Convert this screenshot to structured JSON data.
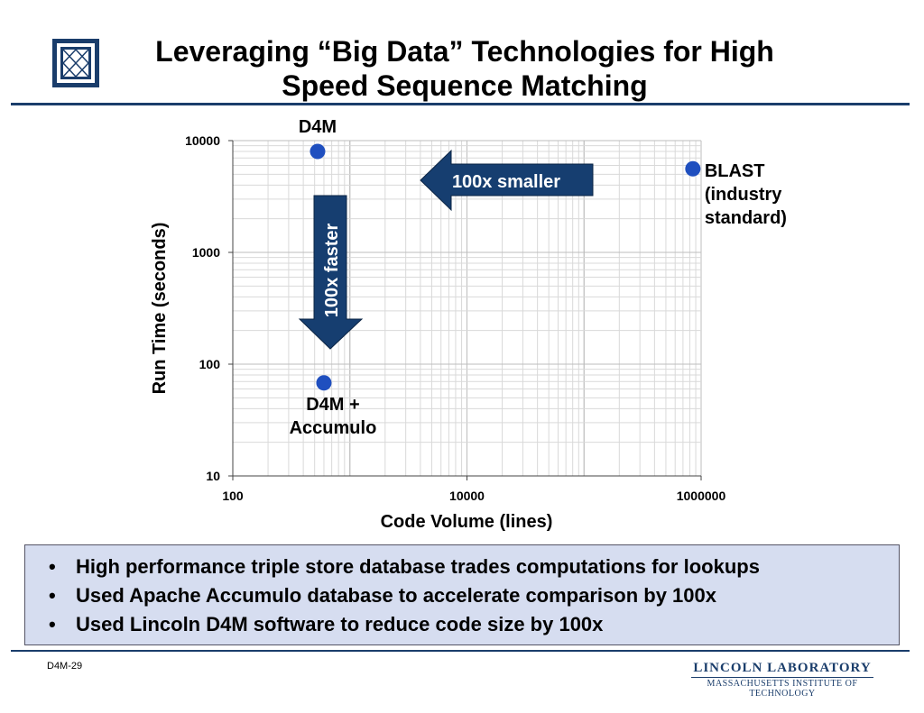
{
  "slide": {
    "title_line1": "Leveraging “Big Data” Technologies for High",
    "title_line2": "Speed Sequence Matching",
    "bullets": [
      "High performance triple store database trades computations for lookups",
      "Used Apache Accumulo database to accelerate comparison by 100x",
      "Used Lincoln D4M software to reduce code size by 100x"
    ],
    "footer_id": "D4M-29",
    "lab_name": "LINCOLN LABORATORY",
    "lab_sub": "MASSACHUSETTS INSTITUTE OF TECHNOLOGY"
  },
  "chart_data": {
    "type": "scatter",
    "xlabel": "Code Volume (lines)",
    "ylabel": "Run Time (seconds)",
    "x_scale": "log",
    "y_scale": "log",
    "xlim": [
      100,
      1000000
    ],
    "ylim": [
      10,
      10000
    ],
    "x_ticks": [
      "100",
      "10000",
      "1000000"
    ],
    "y_ticks": [
      "10",
      "100",
      "1000",
      "10000"
    ],
    "grid": true,
    "marker_color": "#1f4fbf",
    "points": [
      {
        "label": "D4M",
        "x": 530,
        "y": 8000
      },
      {
        "label": "D4M + Accumulo",
        "x": 600,
        "y": 68
      },
      {
        "label": "BLAST (industry standard)",
        "x": 850000,
        "y": 5600
      }
    ],
    "annotations": [
      {
        "text": "100x  smaller",
        "direction": "left"
      },
      {
        "text": "100x  faster",
        "direction": "down"
      }
    ],
    "arrow_color": "#163e70"
  }
}
